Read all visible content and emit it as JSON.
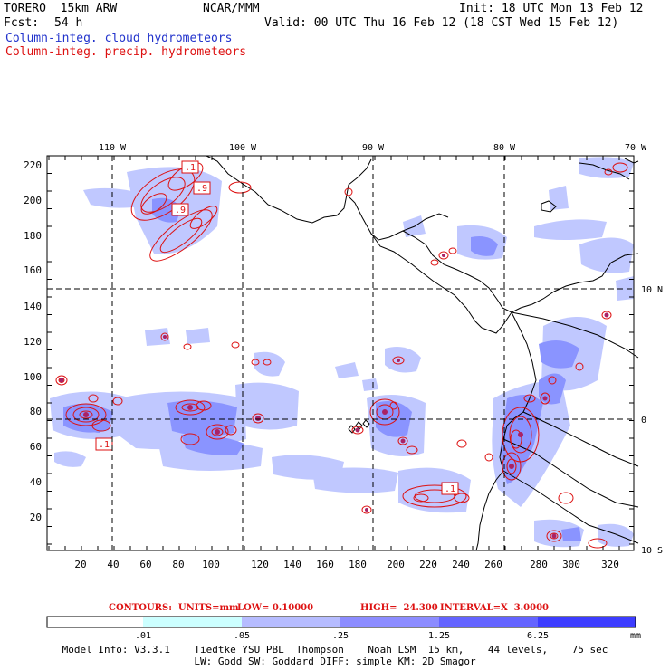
{
  "header": {
    "model_name": "TORERO  15km ARW",
    "org": "NCAR/MMM",
    "init": "Init: 18 UTC Mon 13 Feb 12",
    "fcst_label": "Fcst:",
    "fcst_value": "54 h",
    "valid": "Valid: 00 UTC Thu 16 Feb 12 (18 CST Wed 15 Feb 12)",
    "field1": "Column-integ. cloud hydrometeors",
    "field2": "Column-integ. precip. hydrometeors"
  },
  "map": {
    "lon_labels": [
      "110 W",
      "100 W",
      "90 W",
      "80 W",
      "70 W"
    ],
    "lat_labels": [
      "10 N",
      "0",
      "10 S"
    ],
    "x_ticks": [
      "20",
      "40",
      "60",
      "80",
      "100",
      "120",
      "140",
      "160",
      "180",
      "200",
      "220",
      "240",
      "260",
      "280",
      "300",
      "320"
    ],
    "y_ticks": [
      "220",
      "200",
      "180",
      "160",
      "140",
      "120",
      "100",
      "80",
      "60",
      "40",
      "20"
    ],
    "contour_labels": [
      ".1",
      ".9",
      ".9",
      ".1",
      ".1"
    ],
    "colors": {
      "cloud_light": "#c0c8ff",
      "cloud_mid": "#8a94ff",
      "cloud_dark": "#5e5ef0",
      "contour": "#dd1111",
      "coast": "#000000"
    }
  },
  "contours": {
    "units_label": "CONTOURS:  UNITS=mm",
    "low": "LOW= 0.10000",
    "high": "HIGH=  24.300",
    "interval": "INTERVAL=X  3.0000"
  },
  "colorbar": {
    "labels": [
      ".01",
      ".05",
      ".25",
      "1.25",
      "6.25"
    ],
    "units": "mm",
    "colors": [
      "#ffffff",
      "#ccffff",
      "#b6bcff",
      "#8c8cff",
      "#6464ff",
      "#3c3cff",
      "#1414ee"
    ]
  },
  "model_info": {
    "line1": "Model Info: V3.3.1    Tiedtke YSU PBL  Thompson    Noah LSM  15 km,    44 levels,    75 sec",
    "line2": "LW: Godd SW: Goddard DIFF: simple KM: 2D Smagor"
  }
}
